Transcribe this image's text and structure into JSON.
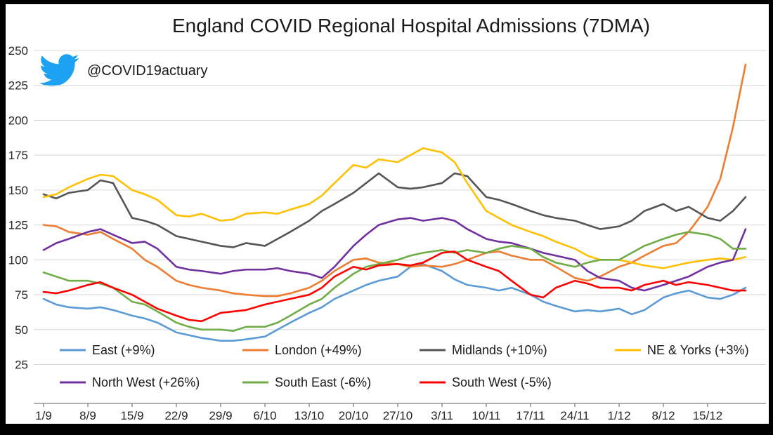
{
  "title": "England COVID Regional Hospital Admissions (7DMA)",
  "twitter_handle": "@COVID19actuary",
  "chart_data": {
    "type": "line",
    "title": "England COVID Regional Hospital Admissions (7DMA)",
    "grid": "horizontal-light-gray",
    "legend_position": "bottom-inside-two-rows",
    "ylim": [
      0,
      250
    ],
    "yticks": [
      25,
      50,
      75,
      100,
      125,
      150,
      175,
      200,
      225,
      250
    ],
    "x_tick_labels": [
      "1/9",
      "8/9",
      "15/9",
      "22/9",
      "29/9",
      "6/10",
      "13/10",
      "20/10",
      "27/10",
      "3/11",
      "10/11",
      "17/11",
      "24/11",
      "1/12",
      "8/12",
      "15/12"
    ],
    "x_tick_days": [
      0,
      7,
      14,
      21,
      28,
      35,
      42,
      49,
      56,
      63,
      70,
      77,
      84,
      91,
      98,
      105
    ],
    "days": [
      0,
      2,
      4,
      7,
      9,
      11,
      14,
      16,
      18,
      21,
      23,
      25,
      28,
      30,
      32,
      35,
      37,
      39,
      42,
      44,
      46,
      49,
      51,
      53,
      56,
      58,
      60,
      63,
      65,
      67,
      70,
      72,
      74,
      77,
      79,
      81,
      84,
      86,
      88,
      91,
      93,
      95,
      98,
      100,
      102,
      105,
      107,
      109,
      111
    ],
    "legend_rows": [
      [
        0,
        1,
        2,
        3
      ],
      [
        4,
        5,
        6
      ]
    ],
    "series": [
      {
        "name": "East",
        "label": "East (+9%)",
        "color": "#5B9BD5",
        "values": [
          72,
          68,
          66,
          65,
          66,
          64,
          60,
          58,
          55,
          48,
          46,
          44,
          42,
          42,
          43,
          45,
          50,
          55,
          62,
          66,
          72,
          78,
          82,
          85,
          88,
          95,
          97,
          92,
          86,
          82,
          80,
          78,
          80,
          75,
          70,
          67,
          63,
          64,
          63,
          65,
          61,
          64,
          73,
          76,
          78,
          73,
          72,
          75,
          80
        ]
      },
      {
        "name": "London",
        "label": "London (+49%)",
        "color": "#ED7D31",
        "values": [
          125,
          124,
          120,
          118,
          120,
          115,
          108,
          100,
          95,
          85,
          82,
          80,
          78,
          76,
          75,
          74,
          74,
          76,
          80,
          85,
          92,
          100,
          101,
          98,
          97,
          95,
          96,
          95,
          97,
          100,
          105,
          106,
          103,
          100,
          100,
          95,
          87,
          85,
          88,
          95,
          98,
          103,
          110,
          112,
          120,
          138,
          158,
          195,
          240
        ]
      },
      {
        "name": "Midlands",
        "label": "Midlands (+10%)",
        "color": "#555555",
        "values": [
          147,
          144,
          148,
          150,
          157,
          155,
          130,
          128,
          125,
          117,
          115,
          113,
          110,
          109,
          112,
          110,
          115,
          120,
          128,
          135,
          140,
          148,
          155,
          162,
          152,
          151,
          152,
          155,
          162,
          160,
          145,
          143,
          140,
          135,
          132,
          130,
          128,
          125,
          122,
          124,
          128,
          135,
          140,
          135,
          138,
          130,
          128,
          135,
          145
        ]
      },
      {
        "name": "NE & Yorks",
        "label": "NE & Yorks (+3%)",
        "color": "#FFC000",
        "values": [
          145,
          147,
          152,
          158,
          161,
          160,
          150,
          147,
          143,
          132,
          131,
          133,
          128,
          129,
          133,
          134,
          133,
          136,
          140,
          146,
          155,
          168,
          166,
          172,
          170,
          175,
          180,
          177,
          170,
          155,
          135,
          130,
          125,
          120,
          117,
          113,
          108,
          103,
          100,
          100,
          98,
          96,
          94,
          96,
          98,
          100,
          101,
          100,
          102
        ]
      },
      {
        "name": "North West",
        "label": "North West (+26%)",
        "color": "#7030A0",
        "values": [
          107,
          112,
          115,
          120,
          122,
          118,
          112,
          113,
          108,
          95,
          93,
          92,
          90,
          92,
          93,
          93,
          94,
          92,
          90,
          87,
          95,
          110,
          118,
          125,
          129,
          130,
          128,
          130,
          128,
          122,
          115,
          113,
          112,
          108,
          105,
          103,
          100,
          92,
          87,
          85,
          80,
          78,
          82,
          85,
          88,
          95,
          98,
          100,
          122
        ]
      },
      {
        "name": "South East",
        "label": "South East (-6%)",
        "color": "#70AD47",
        "values": [
          91,
          88,
          85,
          85,
          83,
          80,
          70,
          68,
          63,
          55,
          52,
          50,
          50,
          49,
          52,
          52,
          55,
          60,
          68,
          72,
          80,
          90,
          95,
          97,
          100,
          103,
          105,
          107,
          105,
          107,
          105,
          108,
          110,
          108,
          102,
          98,
          95,
          98,
          100,
          100,
          105,
          110,
          115,
          118,
          120,
          118,
          115,
          108,
          108
        ]
      },
      {
        "name": "South West",
        "label": "South West (-5%)",
        "color": "#FF0000",
        "values": [
          77,
          76,
          78,
          82,
          84,
          80,
          75,
          70,
          65,
          60,
          57,
          56,
          62,
          63,
          64,
          68,
          70,
          72,
          75,
          80,
          88,
          95,
          93,
          96,
          97,
          96,
          98,
          105,
          106,
          100,
          95,
          92,
          85,
          75,
          73,
          80,
          85,
          83,
          80,
          80,
          78,
          82,
          85,
          82,
          84,
          82,
          80,
          78,
          78
        ]
      }
    ]
  }
}
